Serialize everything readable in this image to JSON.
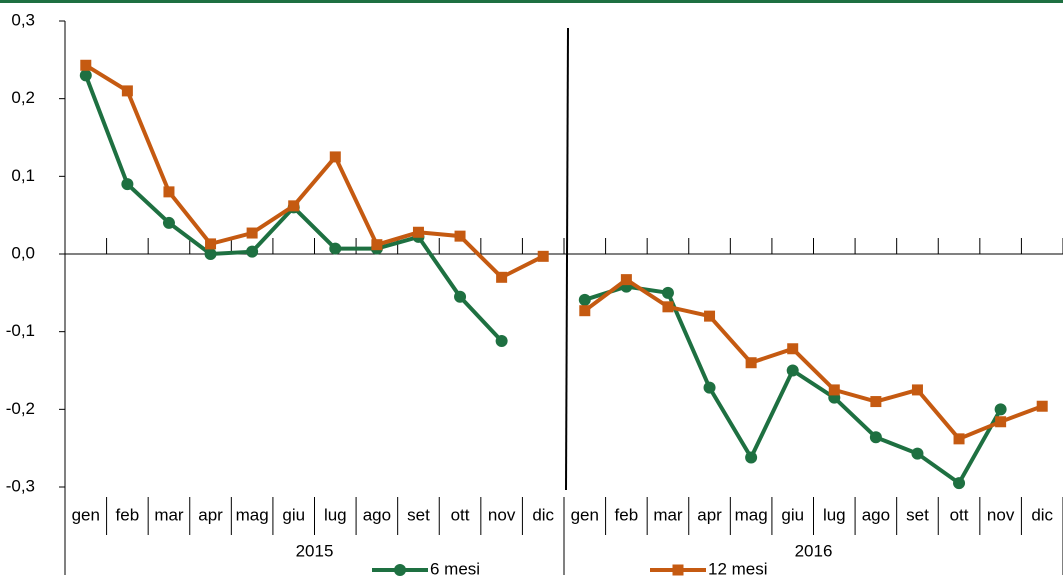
{
  "chart_data": {
    "type": "line",
    "categories": [
      "gen",
      "feb",
      "mar",
      "apr",
      "mag",
      "giu",
      "lug",
      "ago",
      "set",
      "ott",
      "nov",
      "dic",
      "gen",
      "feb",
      "mar",
      "apr",
      "mag",
      "giu",
      "lug",
      "ago",
      "set",
      "ott",
      "nov",
      "dic"
    ],
    "x_groups": [
      "2015",
      "2016"
    ],
    "series": [
      {
        "name": "6 mesi",
        "color": "#1e7041",
        "marker": "circle",
        "values": [
          0.23,
          0.09,
          0.04,
          0.0,
          0.003,
          0.06,
          0.007,
          0.007,
          0.022,
          -0.055,
          -0.112,
          null,
          -0.059,
          -0.042,
          -0.05,
          -0.172,
          -0.262,
          -0.15,
          -0.185,
          -0.236,
          -0.257,
          -0.295,
          -0.2,
          null
        ]
      },
      {
        "name": "12 mesi",
        "color": "#c55a11",
        "marker": "square",
        "values": [
          0.243,
          0.21,
          0.08,
          0.013,
          0.027,
          0.062,
          0.125,
          0.012,
          0.028,
          0.023,
          -0.03,
          -0.003,
          -0.073,
          -0.033,
          -0.068,
          -0.08,
          -0.14,
          -0.122,
          -0.175,
          -0.19,
          -0.175,
          -0.238,
          -0.216,
          -0.196
        ]
      }
    ],
    "ylim": [
      -0.3,
      0.3
    ],
    "yticks": [
      {
        "value": 0.3,
        "label": "0,3"
      },
      {
        "value": 0.2,
        "label": "0,2"
      },
      {
        "value": 0.1,
        "label": "0,1"
      },
      {
        "value": 0.0,
        "label": "0,0"
      },
      {
        "value": -0.1,
        "label": "-0,1"
      },
      {
        "value": -0.2,
        "label": "-0,2"
      },
      {
        "value": -0.3,
        "label": "-0,3"
      }
    ],
    "grid": false,
    "legend": "bottom"
  }
}
